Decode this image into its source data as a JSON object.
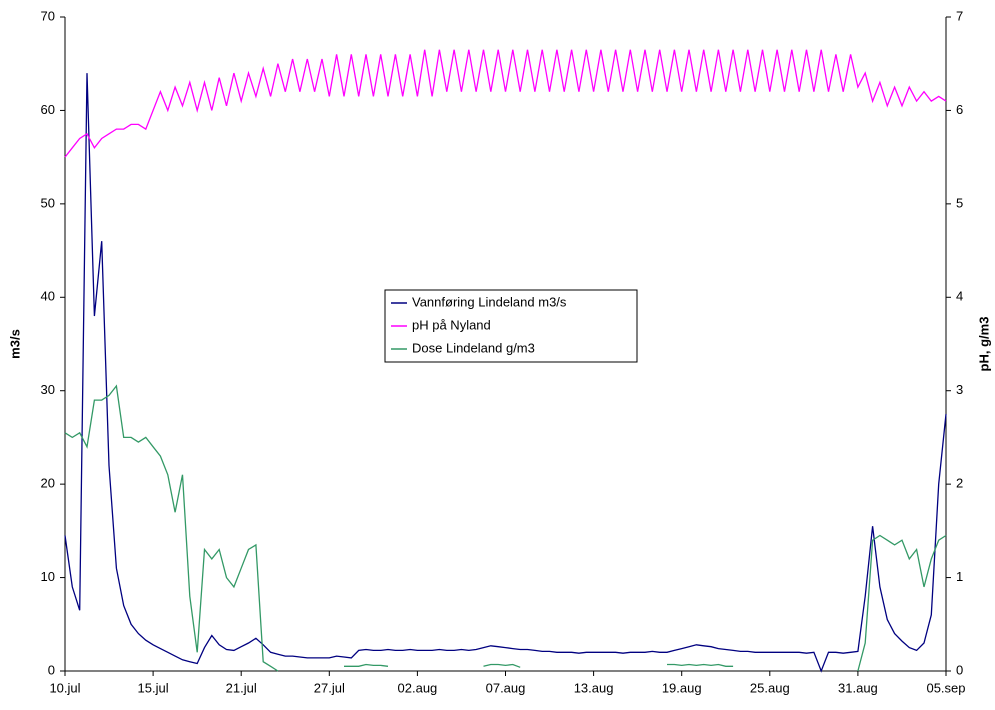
{
  "chart_data": {
    "type": "line",
    "y_label": "m3/s",
    "y2_label": "pH, g/m3",
    "categories": [
      "10.jul",
      null,
      null,
      null,
      null,
      null,
      null,
      null,
      null,
      null,
      null,
      null,
      "15.jul",
      null,
      null,
      null,
      null,
      null,
      null,
      null,
      null,
      null,
      null,
      null,
      "21.jul",
      null,
      null,
      null,
      null,
      null,
      null,
      null,
      null,
      null,
      null,
      null,
      "27.jul",
      null,
      null,
      null,
      null,
      null,
      null,
      null,
      null,
      null,
      null,
      null,
      "02.aug",
      null,
      null,
      null,
      null,
      null,
      null,
      null,
      null,
      null,
      null,
      null,
      "07.aug",
      null,
      null,
      null,
      null,
      null,
      null,
      null,
      null,
      null,
      null,
      null,
      "13.aug",
      null,
      null,
      null,
      null,
      null,
      null,
      null,
      null,
      null,
      null,
      null,
      "19.aug",
      null,
      null,
      null,
      null,
      null,
      null,
      null,
      null,
      null,
      null,
      null,
      "25.aug",
      null,
      null,
      null,
      null,
      null,
      null,
      null,
      null,
      null,
      null,
      null,
      "31.aug",
      null,
      null,
      null,
      null,
      null,
      null,
      null,
      null,
      null,
      null,
      null,
      "05.sep"
    ],
    "series": [
      {
        "name": "Vannføring Lindeland m3/s",
        "color": "#000080",
        "axis": "y",
        "values": [
          14.5,
          9,
          6.5,
          64,
          38,
          46,
          22,
          11,
          7,
          5,
          4,
          3.3,
          2.8,
          2.4,
          2.0,
          1.6,
          1.2,
          1.0,
          0.8,
          2.5,
          3.8,
          2.8,
          2.3,
          2.2,
          2.6,
          3.0,
          3.5,
          2.8,
          2.0,
          1.8,
          1.6,
          1.6,
          1.5,
          1.4,
          1.4,
          1.4,
          1.4,
          1.6,
          1.5,
          1.4,
          2.2,
          2.3,
          2.2,
          2.2,
          2.3,
          2.2,
          2.2,
          2.3,
          2.2,
          2.2,
          2.2,
          2.3,
          2.2,
          2.2,
          2.3,
          2.2,
          2.3,
          2.5,
          2.7,
          2.6,
          2.5,
          2.4,
          2.3,
          2.3,
          2.2,
          2.1,
          2.1,
          2.0,
          2.0,
          2.0,
          1.9,
          2.0,
          2.0,
          2.0,
          2.0,
          2.0,
          1.9,
          2.0,
          2.0,
          2.0,
          2.1,
          2.0,
          2.0,
          2.2,
          2.4,
          2.6,
          2.8,
          2.7,
          2.6,
          2.4,
          2.3,
          2.2,
          2.1,
          2.1,
          2.0,
          2.0,
          2.0,
          2.0,
          2.0,
          2.0,
          2.0,
          1.9,
          2.0,
          0,
          2.0,
          2.0,
          1.9,
          2.0,
          2.1,
          8,
          15.5,
          9,
          5.5,
          4,
          3.2,
          2.5,
          2.2,
          3,
          6,
          20,
          27.5
        ]
      },
      {
        "name": "pH på Nyland",
        "color": "#ff00ff",
        "axis": "y2",
        "values": [
          5.5,
          5.6,
          5.7,
          5.75,
          5.6,
          5.7,
          5.75,
          5.8,
          5.8,
          5.85,
          5.85,
          5.8,
          6.0,
          6.2,
          6.0,
          6.25,
          6.05,
          6.3,
          6.0,
          6.3,
          6.0,
          6.35,
          6.05,
          6.4,
          6.1,
          6.4,
          6.15,
          6.45,
          6.15,
          6.5,
          6.2,
          6.55,
          6.2,
          6.55,
          6.2,
          6.55,
          6.15,
          6.6,
          6.15,
          6.6,
          6.15,
          6.6,
          6.15,
          6.6,
          6.15,
          6.6,
          6.15,
          6.6,
          6.15,
          6.65,
          6.15,
          6.65,
          6.2,
          6.65,
          6.2,
          6.65,
          6.2,
          6.65,
          6.2,
          6.65,
          6.2,
          6.65,
          6.2,
          6.65,
          6.2,
          6.65,
          6.2,
          6.65,
          6.2,
          6.65,
          6.2,
          6.65,
          6.2,
          6.65,
          6.2,
          6.65,
          6.2,
          6.65,
          6.2,
          6.65,
          6.2,
          6.65,
          6.2,
          6.65,
          6.2,
          6.65,
          6.2,
          6.65,
          6.2,
          6.65,
          6.2,
          6.65,
          6.2,
          6.65,
          6.2,
          6.65,
          6.2,
          6.65,
          6.2,
          6.65,
          6.2,
          6.65,
          6.2,
          6.65,
          6.2,
          6.6,
          6.2,
          6.6,
          6.25,
          6.4,
          6.1,
          6.3,
          6.05,
          6.25,
          6.05,
          6.25,
          6.1,
          6.2,
          6.1,
          6.15,
          6.1
        ]
      },
      {
        "name": "Dose Lindeland g/m3",
        "color": "#339966",
        "axis": "y2",
        "values": [
          2.55,
          2.5,
          2.55,
          2.4,
          2.9,
          2.9,
          2.95,
          3.05,
          2.5,
          2.5,
          2.45,
          2.5,
          2.4,
          2.3,
          2.1,
          1.7,
          2.1,
          0.8,
          0.2,
          1.3,
          1.2,
          1.3,
          1.0,
          0.9,
          1.1,
          1.3,
          1.35,
          0.1,
          0.05,
          0,
          null,
          null,
          null,
          null,
          null,
          null,
          null,
          null,
          0.05,
          0.05,
          0.05,
          0.07,
          0.06,
          0.06,
          0.05,
          null,
          0.05,
          null,
          null,
          null,
          null,
          null,
          null,
          null,
          null,
          null,
          null,
          0.05,
          0.07,
          0.07,
          0.06,
          0.07,
          0.04,
          null,
          null,
          null,
          null,
          null,
          null,
          0.03,
          null,
          null,
          null,
          null,
          null,
          null,
          null,
          null,
          null,
          null,
          null,
          null,
          0.07,
          0.07,
          0.06,
          0.07,
          0.06,
          0.07,
          0.06,
          0.07,
          0.05,
          0.05,
          null,
          null,
          null,
          null,
          null,
          null,
          null,
          null,
          null,
          null,
          null,
          null,
          null,
          null,
          null,
          null,
          0,
          0.3,
          1.4,
          1.45,
          1.4,
          1.35,
          1.4,
          1.2,
          1.3,
          0.9,
          1.2,
          1.4,
          1.45
        ]
      }
    ],
    "ylim": [
      0,
      70
    ],
    "yticks": [
      0,
      10,
      20,
      30,
      40,
      50,
      60,
      70
    ],
    "y2lim": [
      0,
      7
    ],
    "y2ticks": [
      0,
      1,
      2,
      3,
      4,
      5,
      6,
      7
    ],
    "grid": false,
    "legend": "center"
  }
}
